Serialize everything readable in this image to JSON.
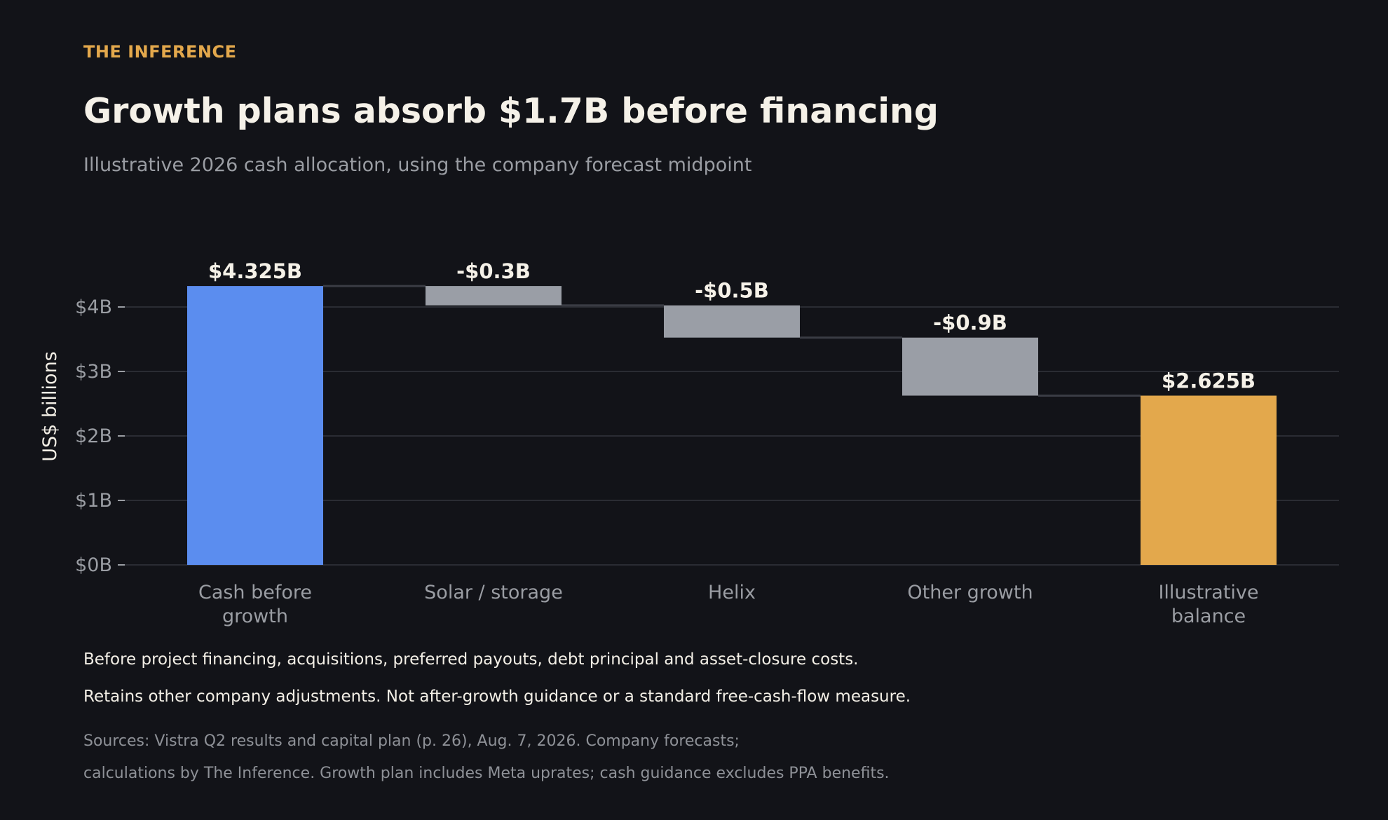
{
  "header": {
    "kicker": "THE INFERENCE",
    "title": "Growth plans absorb $1.7B before financing",
    "subtitle": "Illustrative 2026 cash allocation, using the company forecast midpoint"
  },
  "notes": [
    "Before project financing, acquisitions, preferred payouts, debt principal and asset-closure costs.",
    "Retains other company adjustments. Not after-growth guidance or a standard free-cash-flow measure."
  ],
  "sources": [
    "Sources: Vistra Q2 results and capital plan (p. 26), Aug. 7, 2026. Company forecasts;",
    "calculations by The Inference. Growth plan includes Meta uprates; cash guidance excludes PPA benefits."
  ],
  "colors": {
    "background": "#121318",
    "total_start": "#5b8def",
    "decrease": "#9a9ea6",
    "total_end": "#e3a84c",
    "grid": "#2a2c33",
    "axis_text": "#9a9da3"
  },
  "chart_data": {
    "type": "bar",
    "subtype": "waterfall",
    "categories": [
      "Cash before\ngrowth",
      "Solar / storage",
      "Helix",
      "Other growth",
      "Illustrative\nbalance"
    ],
    "steps": [
      {
        "category": "Cash before\ngrowth",
        "kind": "total",
        "value": 4.325,
        "label": "$4.325B"
      },
      {
        "category": "Solar / storage",
        "kind": "delta",
        "value": -0.3,
        "label": "-$0.3B"
      },
      {
        "category": "Helix",
        "kind": "delta",
        "value": -0.5,
        "label": "-$0.5B"
      },
      {
        "category": "Other growth",
        "kind": "delta",
        "value": -0.9,
        "label": "-$0.9B"
      },
      {
        "category": "Illustrative\nbalance",
        "kind": "total",
        "value": 2.625,
        "label": "$2.625B"
      }
    ],
    "ylabel": "US$ billions",
    "yticks": [
      0,
      1,
      2,
      3,
      4
    ],
    "ytick_labels": [
      "$0B",
      "$1B",
      "$2B",
      "$3B",
      "$4B"
    ],
    "ylim": [
      0,
      4.6
    ],
    "grid": true,
    "legend": "none"
  }
}
